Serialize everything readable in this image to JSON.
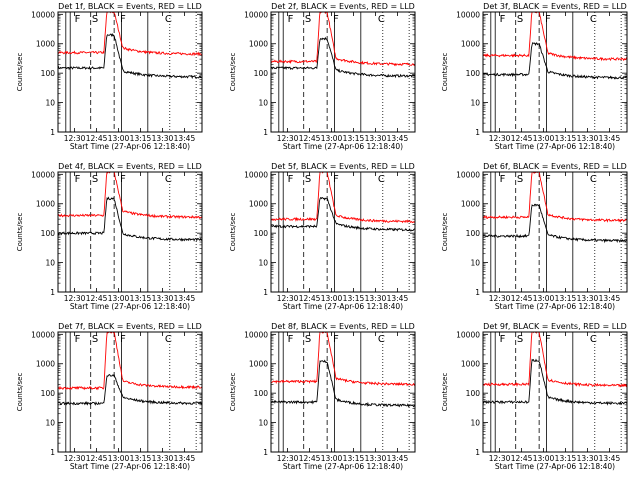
{
  "chart_data": [
    {
      "type": "line",
      "title": "Det 1f, BLACK = Events, RED = LLD",
      "xlabel": "Start Time (27-Apr-06 12:18:40)",
      "ylabel": "Counts/sec",
      "yscale": "log",
      "ylim": [
        1,
        12000
      ],
      "yticks": [
        "1",
        "10",
        "100",
        "1000",
        "10000"
      ],
      "xlim": [
        "12:18:40",
        "13:57"
      ],
      "xticks": [
        "12:30",
        "12:45",
        "13:00",
        "13:15",
        "13:30",
        "13:45"
      ],
      "markers": [
        "F",
        "S",
        "F",
        "C"
      ],
      "series": [
        {
          "color": "#000000",
          "pre": 150,
          "peak": 2000,
          "post": 75
        },
        {
          "color": "#ff0000",
          "pre": 500,
          "peak": 12000,
          "post": 450
        }
      ]
    },
    {
      "type": "line",
      "title": "Det 2f, BLACK = Events, RED = LLD",
      "xlabel": "Start Time (27-Apr-06 12:18:40)",
      "ylabel": "Counts/sec",
      "yscale": "log",
      "ylim": [
        1,
        12000
      ],
      "yticks": [
        "1",
        "10",
        "100",
        "1000",
        "10000"
      ],
      "xlim": [
        "12:18:40",
        "13:57"
      ],
      "xticks": [
        "12:30",
        "12:45",
        "13:00",
        "13:15",
        "13:30",
        "13:45"
      ],
      "markers": [
        "F",
        "S",
        "F",
        "C"
      ],
      "series": [
        {
          "color": "#000000",
          "pre": 150,
          "peak": 1500,
          "post": 80
        },
        {
          "color": "#ff0000",
          "pre": 250,
          "peak": 12000,
          "post": 200
        }
      ]
    },
    {
      "type": "line",
      "title": "Det 3f, BLACK = Events, RED = LLD",
      "xlabel": "Start Time (27-Apr-06 12:18:40)",
      "ylabel": "Counts/sec",
      "yscale": "log",
      "ylim": [
        1,
        12000
      ],
      "yticks": [
        "1",
        "10",
        "100",
        "1000",
        "10000"
      ],
      "xlim": [
        "12:18:40",
        "13:57"
      ],
      "xticks": [
        "12:30",
        "12:45",
        "13:00",
        "13:15",
        "13:30",
        "13:45"
      ],
      "markers": [
        "F",
        "S",
        "F",
        "C"
      ],
      "series": [
        {
          "color": "#000000",
          "pre": 90,
          "peak": 1000,
          "post": 70
        },
        {
          "color": "#ff0000",
          "pre": 400,
          "peak": 12000,
          "post": 300
        }
      ]
    },
    {
      "type": "line",
      "title": "Det 4f, BLACK = Events, RED = LLD",
      "xlabel": "Start Time (27-Apr-06 12:18:40)",
      "ylabel": "Counts/sec",
      "yscale": "log",
      "ylim": [
        1,
        12000
      ],
      "yticks": [
        "1",
        "10",
        "100",
        "1000",
        "10000"
      ],
      "xlim": [
        "12:18:40",
        "13:57"
      ],
      "xticks": [
        "12:30",
        "12:45",
        "13:00",
        "13:15",
        "13:30",
        "13:45"
      ],
      "markers": [
        "F",
        "S",
        "F",
        "C"
      ],
      "series": [
        {
          "color": "#000000",
          "pre": 100,
          "peak": 1500,
          "post": 60
        },
        {
          "color": "#ff0000",
          "pre": 400,
          "peak": 12000,
          "post": 350
        }
      ]
    },
    {
      "type": "line",
      "title": "Det 5f, BLACK = Events, RED = LLD",
      "xlabel": "Start Time (27-Apr-06 12:18:40)",
      "ylabel": "Counts/sec",
      "yscale": "log",
      "ylim": [
        1,
        12000
      ],
      "yticks": [
        "1",
        "10",
        "100",
        "1000",
        "10000"
      ],
      "xlim": [
        "12:18:40",
        "13:57"
      ],
      "xticks": [
        "12:30",
        "12:45",
        "13:00",
        "13:15",
        "13:30",
        "13:45"
      ],
      "markers": [
        "F",
        "S",
        "F",
        "C"
      ],
      "series": [
        {
          "color": "#000000",
          "pre": 170,
          "peak": 1500,
          "post": 130
        },
        {
          "color": "#ff0000",
          "pre": 300,
          "peak": 12000,
          "post": 250
        }
      ]
    },
    {
      "type": "line",
      "title": "Det 6f, BLACK = Events, RED = LLD",
      "xlabel": "Start Time (27-Apr-06 12:18:40)",
      "ylabel": "Counts/sec",
      "yscale": "log",
      "ylim": [
        1,
        12000
      ],
      "yticks": [
        "1",
        "10",
        "100",
        "1000",
        "10000"
      ],
      "xlim": [
        "12:18:40",
        "13:57"
      ],
      "xticks": [
        "12:30",
        "12:45",
        "13:00",
        "13:15",
        "13:30",
        "13:45"
      ],
      "markers": [
        "F",
        "S",
        "F",
        "C"
      ],
      "series": [
        {
          "color": "#000000",
          "pre": 80,
          "peak": 900,
          "post": 55
        },
        {
          "color": "#ff0000",
          "pre": 350,
          "peak": 12000,
          "post": 270
        }
      ]
    },
    {
      "type": "line",
      "title": "Det 7f, BLACK = Events, RED = LLD",
      "xlabel": "Start Time (27-Apr-06 12:18:40)",
      "ylabel": "Counts/sec",
      "yscale": "log",
      "ylim": [
        1,
        12000
      ],
      "yticks": [
        "1",
        "10",
        "100",
        "1000",
        "10000"
      ],
      "xlim": [
        "12:18:40",
        "13:57"
      ],
      "xticks": [
        "12:30",
        "12:45",
        "13:00",
        "13:15",
        "13:30",
        "13:45"
      ],
      "markers": [
        "F",
        "S",
        "F",
        "C"
      ],
      "series": [
        {
          "color": "#000000",
          "pre": 45,
          "peak": 400,
          "post": 45
        },
        {
          "color": "#ff0000",
          "pre": 150,
          "peak": 12000,
          "post": 160
        }
      ]
    },
    {
      "type": "line",
      "title": "Det 8f, BLACK = Events, RED = LLD",
      "xlabel": "Start Time (27-Apr-06 12:18:40)",
      "ylabel": "Counts/sec",
      "yscale": "log",
      "ylim": [
        1,
        12000
      ],
      "yticks": [
        "1",
        "10",
        "100",
        "1000",
        "10000"
      ],
      "xlim": [
        "12:18:40",
        "13:57"
      ],
      "xticks": [
        "12:30",
        "12:45",
        "13:00",
        "13:15",
        "13:30",
        "13:45"
      ],
      "markers": [
        "F",
        "S",
        "F",
        "C"
      ],
      "series": [
        {
          "color": "#000000",
          "pre": 50,
          "peak": 1200,
          "post": 38
        },
        {
          "color": "#ff0000",
          "pre": 250,
          "peak": 12000,
          "post": 200
        }
      ]
    },
    {
      "type": "line",
      "title": "Det 9f, BLACK = Events, RED = LLD",
      "xlabel": "Start Time (27-Apr-06 12:18:40)",
      "ylabel": "Counts/sec",
      "yscale": "log",
      "ylim": [
        1,
        12000
      ],
      "yticks": [
        "1",
        "10",
        "100",
        "1000",
        "10000"
      ],
      "xlim": [
        "12:18:40",
        "13:57"
      ],
      "xticks": [
        "12:30",
        "12:45",
        "13:00",
        "13:15",
        "13:30",
        "13:45"
      ],
      "markers": [
        "F",
        "S",
        "F",
        "C"
      ],
      "series": [
        {
          "color": "#000000",
          "pre": 50,
          "peak": 1300,
          "post": 45
        },
        {
          "color": "#ff0000",
          "pre": 200,
          "peak": 12000,
          "post": 180
        }
      ]
    }
  ]
}
